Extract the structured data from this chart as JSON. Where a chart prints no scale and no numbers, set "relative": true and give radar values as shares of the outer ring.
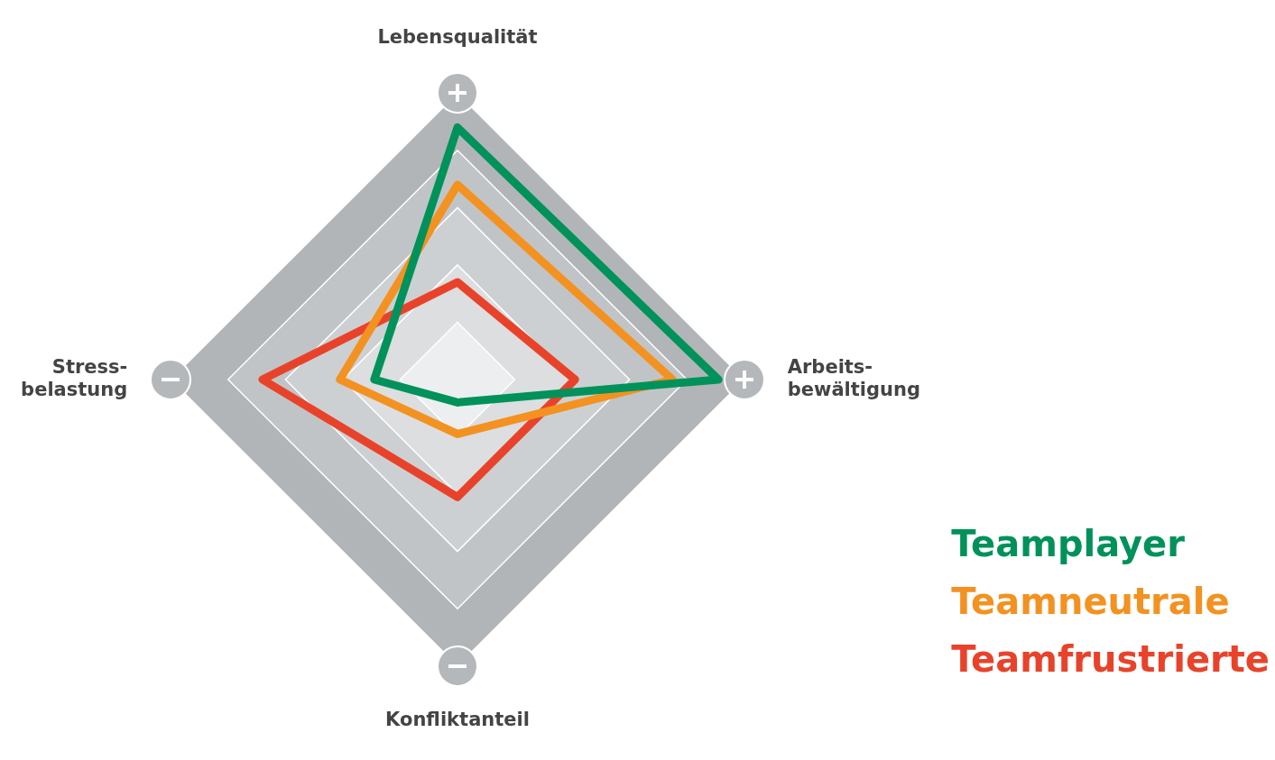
{
  "chart_data": {
    "type": "radar",
    "relative": true,
    "categories": [
      "Lebensqualität",
      "Arbeits-\nbewältigung",
      "Konfliktanteil",
      "Stress-\nbelastung"
    ],
    "series": [
      {
        "name": "Teamplayer",
        "color": "#00925a",
        "values": [
          0.88,
          0.91,
          0.08,
          0.29
        ]
      },
      {
        "name": "Teamneutrale",
        "color": "#f39220",
        "values": [
          0.68,
          0.75,
          0.19,
          0.41
        ]
      },
      {
        "name": "Teamfrustrierte",
        "color": "#e8432a",
        "values": [
          0.34,
          0.41,
          0.41,
          0.68
        ]
      }
    ],
    "legend": "bottom right",
    "grid": true,
    "marker": "none",
    "line_style": "solid"
  }
}
